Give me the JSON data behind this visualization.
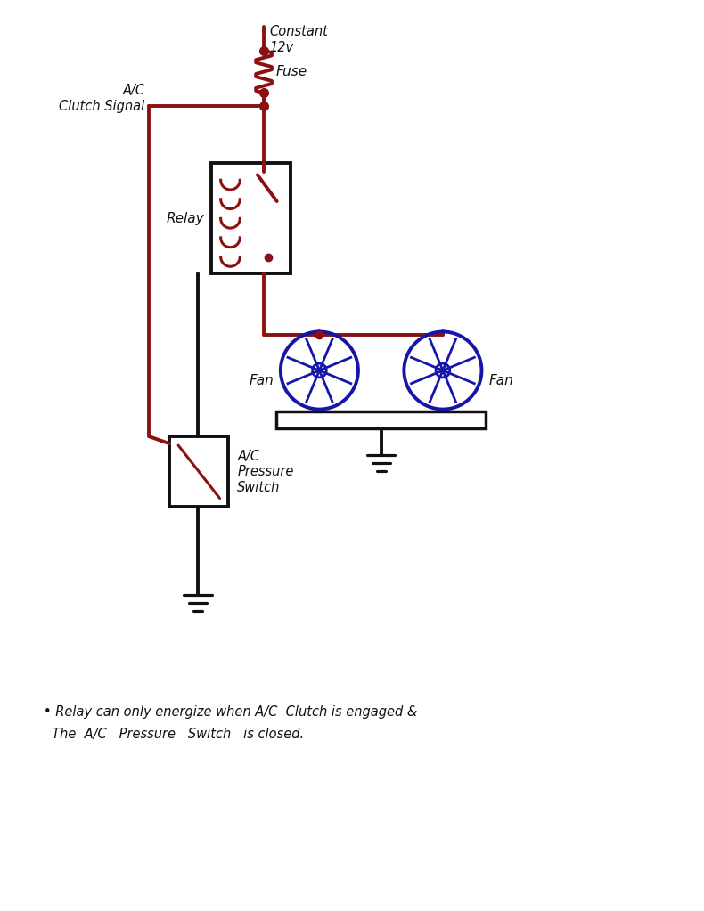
{
  "bg_color": "#ffffff",
  "wire_red": "#8B1010",
  "wire_black": "#111111",
  "fan_color": "#1515AA",
  "note_text1": "• Relay can only energize when A/C  Clutch is engaged &",
  "note_text2": "  The  A/C   Pressure   Switch   is closed.",
  "label_constant": "Constant\n12v",
  "label_fuse": "Fuse",
  "label_ac_clutch": "A/C\nClutch Signal",
  "label_relay": "Relay",
  "label_fan1": "Fan",
  "label_fan2": "Fan",
  "label_pressure": "A/C\nPressure\nSwitch",
  "figsize": [
    7.9,
    10.23
  ],
  "dpi": 100
}
